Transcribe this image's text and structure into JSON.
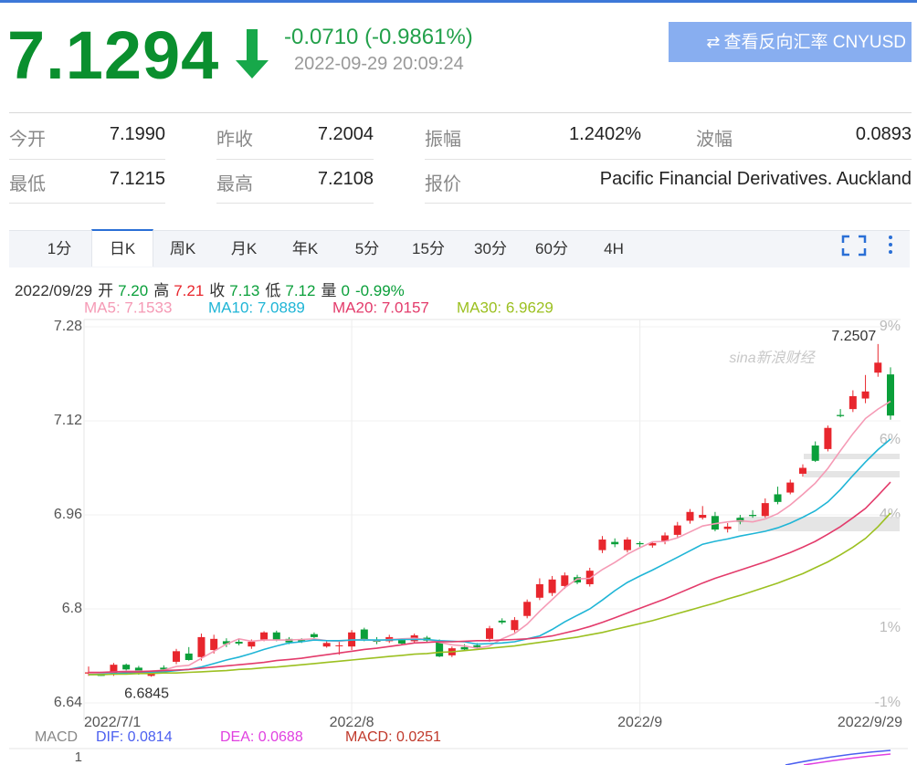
{
  "quote": {
    "price": "7.1294",
    "change": "-0.0710 (-0.9861%)",
    "time": "2022-09-29 20:09:24",
    "button": "查看反向汇率 CNYUSD"
  },
  "stats": {
    "rows": [
      [
        {
          "label": "今开",
          "value": "7.1990"
        },
        {
          "label": "昨收",
          "value": "7.2004"
        },
        {
          "label": "振幅",
          "value": "1.2402%"
        },
        {
          "label": "波幅",
          "value": "0.0893"
        }
      ],
      [
        {
          "label": "最低",
          "value": "7.1215"
        },
        {
          "label": "最高",
          "value": "7.2108"
        },
        {
          "label": "报价",
          "value": "Pacific Financial Derivatives. Auckland"
        }
      ]
    ]
  },
  "tabs": {
    "items": [
      "1分",
      "日K",
      "周K",
      "月K",
      "年K",
      "5分",
      "15分",
      "30分",
      "60分",
      "4H"
    ],
    "active": 1
  },
  "info_line": {
    "date": "2022/09/29",
    "items": [
      {
        "label": "开",
        "value": "7.20",
        "color": "#0a9f3a"
      },
      {
        "label": "高",
        "value": "7.21",
        "color": "#e8262d"
      },
      {
        "label": "收",
        "value": "7.13",
        "color": "#0a9f3a"
      },
      {
        "label": "低",
        "value": "7.12",
        "color": "#0a9f3a"
      },
      {
        "label": "量",
        "value": "0",
        "color": "#0a9f3a"
      }
    ],
    "change": "-0.99%"
  },
  "chart_data": {
    "type": "candlestick",
    "watermark": "sina新浪财经",
    "categories": [
      "2022/7/1",
      null,
      null,
      null,
      null,
      null,
      null,
      null,
      null,
      null,
      null,
      null,
      null,
      null,
      null,
      null,
      null,
      null,
      null,
      null,
      null,
      "2022/8",
      null,
      null,
      null,
      null,
      null,
      null,
      null,
      null,
      null,
      null,
      null,
      null,
      null,
      null,
      null,
      null,
      null,
      null,
      null,
      null,
      null,
      null,
      "2022/9",
      null,
      null,
      null,
      null,
      null,
      null,
      null,
      null,
      null,
      null,
      null,
      null,
      null,
      null,
      null,
      null,
      null,
      null,
      null,
      "2022/9/29"
    ],
    "open": [
      6.69,
      6.69,
      6.688,
      6.705,
      6.7,
      6.686,
      6.7,
      6.71,
      6.724,
      6.718,
      6.73,
      6.745,
      6.744,
      6.736,
      6.748,
      6.76,
      6.749,
      6.747,
      6.757,
      6.736,
      6.738,
      6.736,
      6.765,
      6.747,
      6.745,
      6.747,
      6.745,
      6.751,
      6.744,
      6.721,
      6.735,
      6.738,
      6.749,
      6.78,
      6.764,
      6.788,
      6.819,
      6.827,
      6.839,
      6.854,
      6.842,
      6.9,
      6.914,
      6.9,
      6.912,
      6.908,
      6.915,
      6.926,
      6.95,
      6.955,
      6.958,
      6.936,
      6.955,
      6.96,
      6.958,
      6.995,
      6.998,
      7.03,
      7.078,
      7.072,
      7.13,
      7.14,
      7.158,
      7.202,
      7.199
    ],
    "high": [
      6.702,
      6.693,
      6.708,
      6.707,
      6.703,
      6.692,
      6.704,
      6.732,
      6.735,
      6.758,
      6.756,
      6.75,
      6.748,
      6.748,
      6.762,
      6.763,
      6.752,
      6.75,
      6.76,
      6.746,
      6.746,
      6.764,
      6.768,
      6.752,
      6.756,
      6.75,
      6.758,
      6.754,
      6.748,
      6.736,
      6.74,
      6.742,
      6.771,
      6.784,
      6.786,
      6.816,
      6.852,
      6.856,
      6.862,
      6.858,
      6.87,
      6.924,
      6.92,
      6.922,
      6.915,
      6.915,
      6.93,
      6.948,
      6.97,
      6.975,
      6.965,
      6.946,
      6.96,
      6.968,
      6.988,
      7.008,
      7.02,
      7.046,
      7.085,
      7.112,
      7.14,
      7.172,
      7.198,
      7.2507,
      7.211
    ],
    "low": [
      6.686,
      6.686,
      6.686,
      6.694,
      6.688,
      6.6845,
      6.694,
      6.706,
      6.712,
      6.712,
      6.724,
      6.735,
      6.738,
      6.732,
      6.745,
      6.745,
      6.74,
      6.742,
      6.75,
      6.734,
      6.722,
      6.73,
      6.745,
      6.74,
      6.742,
      6.738,
      6.742,
      6.744,
      6.718,
      6.718,
      6.728,
      6.732,
      6.744,
      6.774,
      6.76,
      6.784,
      6.815,
      6.822,
      6.834,
      6.842,
      6.838,
      6.895,
      6.905,
      6.896,
      6.905,
      6.904,
      6.91,
      6.922,
      6.945,
      6.952,
      6.932,
      6.93,
      6.944,
      6.955,
      6.955,
      6.978,
      6.995,
      7.025,
      7.05,
      7.068,
      7.126,
      7.135,
      7.15,
      7.195,
      7.122
    ],
    "close": [
      6.692,
      6.686,
      6.705,
      6.697,
      6.692,
      6.69,
      6.697,
      6.728,
      6.713,
      6.752,
      6.749,
      6.74,
      6.741,
      6.744,
      6.76,
      6.748,
      6.743,
      6.744,
      6.752,
      6.742,
      6.738,
      6.76,
      6.748,
      6.744,
      6.752,
      6.741,
      6.755,
      6.746,
      6.719,
      6.733,
      6.731,
      6.735,
      6.767,
      6.777,
      6.781,
      6.812,
      6.842,
      6.85,
      6.857,
      6.845,
      6.865,
      6.918,
      6.91,
      6.918,
      6.91,
      6.912,
      6.925,
      6.942,
      6.965,
      6.96,
      6.935,
      6.94,
      6.948,
      6.958,
      6.98,
      6.982,
      7.015,
      7.04,
      7.052,
      7.108,
      7.128,
      7.162,
      7.17,
      7.219,
      7.129
    ],
    "up_color": "#e8262d",
    "down_color": "#0a9f3a",
    "ma": [
      {
        "legend": "MA5: 7.1533",
        "color": "#f59ab5",
        "values": [
          6.69,
          6.69,
          6.693,
          6.694,
          6.694,
          6.694,
          6.696,
          6.702,
          6.704,
          6.716,
          6.728,
          6.74,
          6.749,
          6.745,
          6.747,
          6.747,
          6.747,
          6.748,
          6.749,
          6.746,
          6.745,
          6.747,
          6.748,
          6.746,
          6.748,
          6.749,
          6.75,
          6.748,
          6.743,
          6.739,
          6.737,
          6.733,
          6.737,
          6.749,
          6.758,
          6.774,
          6.796,
          6.816,
          6.836,
          6.851,
          6.852,
          6.867,
          6.879,
          6.893,
          6.904,
          6.914,
          6.915,
          6.921,
          6.931,
          6.941,
          6.945,
          6.948,
          6.95,
          6.948,
          6.953,
          6.962,
          6.977,
          6.995,
          7.014,
          7.039,
          7.069,
          7.098,
          7.124,
          7.14,
          7.1533
        ]
      },
      {
        "legend": "MA10: 7.0889",
        "color": "#1fb5d6",
        "values": [
          6.688,
          6.689,
          6.69,
          6.691,
          6.692,
          6.692,
          6.693,
          6.695,
          6.697,
          6.701,
          6.707,
          6.713,
          6.718,
          6.724,
          6.731,
          6.737,
          6.742,
          6.744,
          6.747,
          6.746,
          6.746,
          6.747,
          6.747,
          6.747,
          6.747,
          6.748,
          6.748,
          6.748,
          6.746,
          6.745,
          6.744,
          6.74,
          6.741,
          6.742,
          6.744,
          6.749,
          6.754,
          6.765,
          6.778,
          6.789,
          6.8,
          6.815,
          6.831,
          6.845,
          6.856,
          6.866,
          6.877,
          6.888,
          6.899,
          6.91,
          6.915,
          6.919,
          6.924,
          6.928,
          6.932,
          6.938,
          6.946,
          6.956,
          6.967,
          6.982,
          7.003,
          7.027,
          7.05,
          7.071,
          7.0889
        ]
      },
      {
        "legend": "MA20: 7.0157",
        "color": "#e33b6b",
        "values": [
          6.692,
          6.692,
          6.693,
          6.693,
          6.693,
          6.694,
          6.695,
          6.696,
          6.697,
          6.699,
          6.701,
          6.703,
          6.705,
          6.707,
          6.709,
          6.712,
          6.714,
          6.716,
          6.719,
          6.722,
          6.725,
          6.728,
          6.731,
          6.733,
          6.736,
          6.739,
          6.742,
          6.743,
          6.744,
          6.744,
          6.745,
          6.746,
          6.746,
          6.747,
          6.748,
          6.749,
          6.751,
          6.754,
          6.759,
          6.764,
          6.77,
          6.777,
          6.785,
          6.793,
          6.801,
          6.809,
          6.817,
          6.826,
          6.835,
          6.844,
          6.852,
          6.859,
          6.866,
          6.873,
          6.88,
          6.888,
          6.896,
          6.905,
          6.915,
          6.927,
          6.94,
          6.955,
          6.971,
          6.993,
          7.0157
        ]
      },
      {
        "legend": "MA30: 6.9629",
        "color": "#9cc021",
        "values": [
          6.688,
          6.688,
          6.689,
          6.689,
          6.69,
          6.69,
          6.691,
          6.691,
          6.692,
          6.693,
          6.694,
          6.695,
          6.697,
          6.698,
          6.7,
          6.701,
          6.703,
          6.705,
          6.707,
          6.709,
          6.711,
          6.713,
          6.715,
          6.717,
          6.719,
          6.721,
          6.723,
          6.724,
          6.726,
          6.727,
          6.729,
          6.731,
          6.733,
          6.735,
          6.737,
          6.74,
          6.743,
          6.746,
          6.749,
          6.752,
          6.756,
          6.76,
          6.765,
          6.77,
          6.775,
          6.78,
          6.786,
          6.792,
          6.798,
          6.804,
          6.81,
          6.817,
          6.823,
          6.83,
          6.837,
          6.844,
          6.852,
          6.86,
          6.87,
          6.88,
          6.892,
          6.905,
          6.92,
          6.94,
          6.9629
        ]
      }
    ],
    "annotations": [
      "7.2507",
      "6.6845"
    ],
    "ylim": [
      6.64,
      7.28
    ],
    "yticks": [
      6.64,
      6.8,
      6.96,
      7.12,
      7.28
    ],
    "y2lim": [
      -1,
      9
    ],
    "y2ticks": [
      {
        "value": -1,
        "label": "-1%"
      },
      {
        "value": 1,
        "label": "1%"
      },
      {
        "value": 4,
        "label": "4%"
      },
      {
        "value": 6,
        "label": "6%"
      },
      {
        "value": 9,
        "label": "9%"
      }
    ],
    "grid": true
  },
  "macd": {
    "title": "MACD",
    "dif": "DIF: 0.0814",
    "dea": "DEA: 0.0688",
    "macd": "MACD: 0.0251",
    "axis_label": "1"
  }
}
